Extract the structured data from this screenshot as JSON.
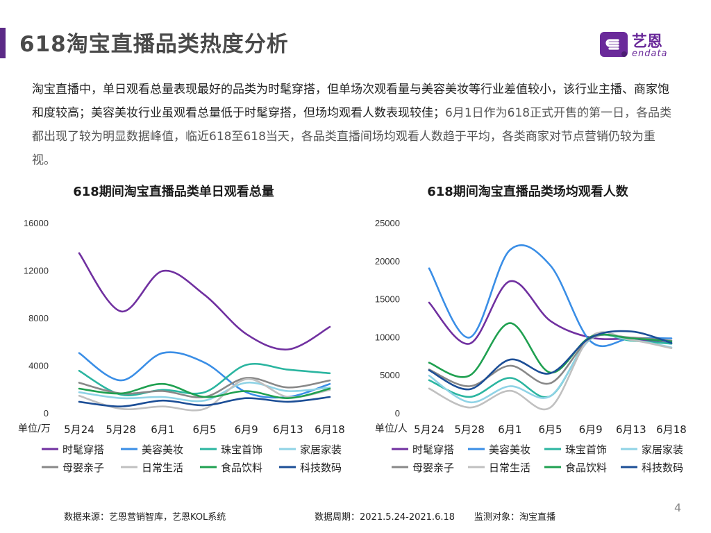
{
  "page": {
    "title": "618淘宝直播品类热度分析",
    "page_number": "4"
  },
  "logo": {
    "cn": "艺恩",
    "en": "endata"
  },
  "summary": {
    "part1": "淘宝直播中，单日观看总量表现最好的品类为时髦穿搭，但单场次观看量与美容美妆等行业差值较小，该行业主播、商家饱和度较高；美容美妆行业虽观看总量低于时髦穿搭，但场均观看人数表现较佳；",
    "part2": "6月1日作为618正式开售的第一日，各品类都出现了较为明显数据峰值，临近618至618当天，各品类直播间场均观看人数趋于平均，各类商家对节点营销仍较为重视。"
  },
  "footer": {
    "source": "数据来源：艺恩营销智库，艺恩KOL系统",
    "period": "数据周期：2021.5.24-2021.6.18",
    "target": "监测对象：淘宝直播"
  },
  "colors": {
    "accent": "#5b2a86"
  },
  "chart_data": [
    {
      "type": "line",
      "title": "618期间淘宝直播品类单日观看总量",
      "ylabel": "单位/万",
      "ylim": [
        0,
        16000
      ],
      "yticks": [
        0,
        4000,
        8000,
        12000,
        16000
      ],
      "categories": [
        "5月24",
        "5月28",
        "6月1",
        "6月5",
        "6月9",
        "6月13",
        "6月18"
      ],
      "series": [
        {
          "name": "时髦穿搭",
          "color": "#7030a0",
          "values": [
            13500,
            8600,
            12000,
            10000,
            6700,
            5400,
            7300
          ]
        },
        {
          "name": "美容美妆",
          "color": "#3a8ee6",
          "values": [
            5100,
            2800,
            5100,
            4300,
            1800,
            1400,
            2500
          ]
        },
        {
          "name": "珠宝首饰",
          "color": "#2bb5a0",
          "values": [
            3600,
            1600,
            2000,
            1800,
            4100,
            3700,
            3400
          ]
        },
        {
          "name": "家居家装",
          "color": "#8fd3e6",
          "values": [
            1800,
            1300,
            1400,
            1100,
            2600,
            1900,
            2200
          ]
        },
        {
          "name": "母婴亲子",
          "color": "#888888",
          "values": [
            2600,
            1700,
            1900,
            1400,
            3000,
            2200,
            2800
          ]
        },
        {
          "name": "日常生活",
          "color": "#c0c0c0",
          "values": [
            1500,
            400,
            600,
            400,
            2900,
            1400,
            2000
          ]
        },
        {
          "name": "食品饮料",
          "color": "#1fa050",
          "values": [
            2100,
            1700,
            2500,
            1400,
            1900,
            1300,
            2100
          ]
        },
        {
          "name": "科技数码",
          "color": "#1c4e96",
          "values": [
            1000,
            600,
            1100,
            700,
            1300,
            1000,
            1400
          ]
        }
      ]
    },
    {
      "type": "line",
      "title": "618期间淘宝直播品类场均观看人数",
      "ylabel": "单位/人",
      "ylim": [
        0,
        25000
      ],
      "yticks": [
        0,
        5000,
        10000,
        15000,
        20000,
        25000
      ],
      "categories": [
        "5月24",
        "5月28",
        "6月1",
        "6月5",
        "6月9",
        "6月13",
        "6月18"
      ],
      "series": [
        {
          "name": "时髦穿搭",
          "color": "#7030a0",
          "values": [
            14600,
            9200,
            17400,
            12200,
            10000,
            9800,
            9200
          ]
        },
        {
          "name": "美容美妆",
          "color": "#3a8ee6",
          "values": [
            19100,
            10000,
            21500,
            19500,
            9500,
            9900,
            9900
          ]
        },
        {
          "name": "珠宝首饰",
          "color": "#2bb5a0",
          "values": [
            4400,
            2200,
            4700,
            2300,
            9900,
            9600,
            9200
          ]
        },
        {
          "name": "家居家装",
          "color": "#8fd3e6",
          "values": [
            5000,
            1500,
            3600,
            2300,
            9800,
            9700,
            8700
          ]
        },
        {
          "name": "母婴亲子",
          "color": "#888888",
          "values": [
            5800,
            3600,
            6300,
            4000,
            9900,
            10000,
            9600
          ]
        },
        {
          "name": "日常生活",
          "color": "#c0c0c0",
          "values": [
            3300,
            800,
            3000,
            800,
            10100,
            9700,
            8600
          ]
        },
        {
          "name": "食品饮料",
          "color": "#1fa050",
          "values": [
            6700,
            5000,
            11900,
            5400,
            10100,
            9900,
            9500
          ]
        },
        {
          "name": "科技数码",
          "color": "#1c4e96",
          "values": [
            5700,
            3200,
            7100,
            5300,
            10000,
            10800,
            9300
          ]
        }
      ]
    }
  ]
}
